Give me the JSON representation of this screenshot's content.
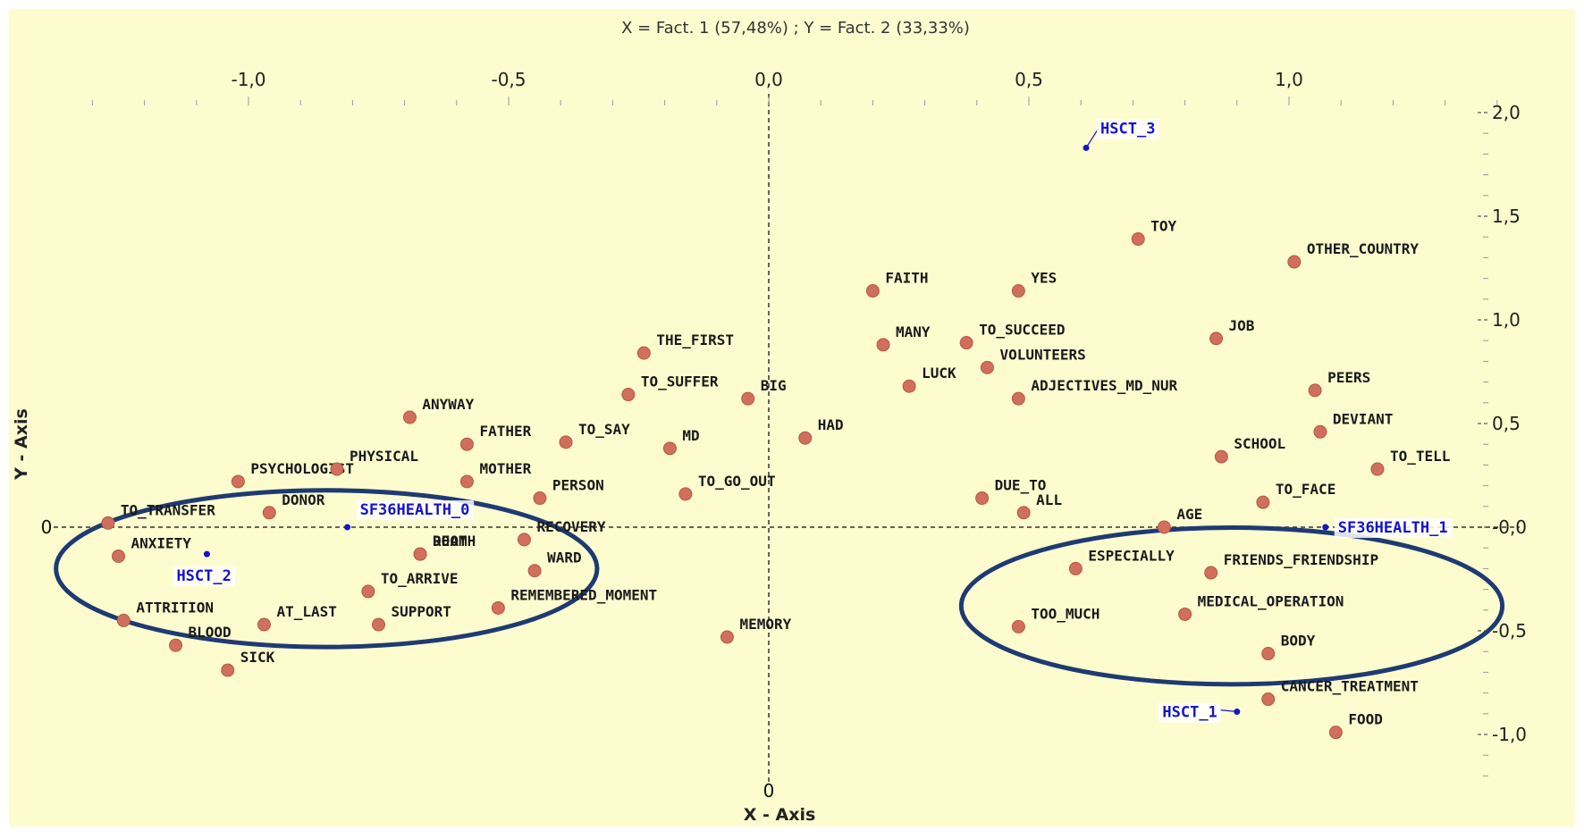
{
  "chart_data": {
    "type": "scatter",
    "title": "X = Fact. 1 (57,48%) ; Y = Fact. 2 (33,33%)",
    "xlabel": "X - Axis",
    "ylabel": "Y - Axis",
    "xlim": [
      -1.35,
      1.42
    ],
    "ylim": [
      -1.28,
      2.1
    ],
    "x_ticks": [
      -1.0,
      -0.5,
      0.0,
      0.5,
      1.0
    ],
    "x_tick_labels": [
      "-1,0",
      "-0,5",
      "0,0",
      "0,5",
      "1,0"
    ],
    "y_ticks": [
      2.0,
      1.5,
      1.0,
      0.5,
      0.0,
      -0.5,
      -1.0
    ],
    "y_tick_labels": [
      "2,0",
      "1,5",
      "1,0",
      "0,5",
      "-0,0",
      "-0,5",
      "-1,0"
    ],
    "origin_labels": {
      "x": "0",
      "y": "0"
    },
    "grid": false,
    "point_color": "#d06f5b",
    "supplementary_color": "#1414c8",
    "ellipse_color": "#1f3a72",
    "series": [
      {
        "kind": "words",
        "points": [
          {
            "label": "THE_FIRST",
            "x": -0.24,
            "y": 0.84
          },
          {
            "label": "TO_SUFFER",
            "x": -0.27,
            "y": 0.64
          },
          {
            "label": "BIG",
            "x": -0.04,
            "y": 0.62
          },
          {
            "label": "ANYWAY",
            "x": -0.69,
            "y": 0.53
          },
          {
            "label": "FATHER",
            "x": -0.58,
            "y": 0.4
          },
          {
            "label": "TO_SAY",
            "x": -0.39,
            "y": 0.41
          },
          {
            "label": "MD",
            "x": -0.19,
            "y": 0.38
          },
          {
            "label": "HAD",
            "x": 0.07,
            "y": 0.43
          },
          {
            "label": "PSYCHOLOGIST",
            "x": -1.02,
            "y": 0.22
          },
          {
            "label": "PHYSICAL",
            "x": -0.83,
            "y": 0.28
          },
          {
            "label": "MOTHER",
            "x": -0.58,
            "y": 0.22
          },
          {
            "label": "TO_GO_OUT",
            "x": -0.16,
            "y": 0.16
          },
          {
            "label": "PERSON",
            "x": -0.44,
            "y": 0.14
          },
          {
            "label": "TO_TRANSFER",
            "x": -1.27,
            "y": 0.02
          },
          {
            "label": "DONOR",
            "x": -0.96,
            "y": 0.07
          },
          {
            "label": "RECOVERY",
            "x": -0.47,
            "y": -0.06
          },
          {
            "label": "ANXIETY",
            "x": -1.25,
            "y": -0.14
          },
          {
            "label": "DEATH",
            "x": -0.67,
            "y": -0.13
          },
          {
            "label": "ROOM",
            "x": -0.67,
            "y": -0.13
          },
          {
            "label": "WARD",
            "x": -0.45,
            "y": -0.21
          },
          {
            "label": "TO_ARRIVE",
            "x": -0.77,
            "y": -0.31
          },
          {
            "label": "ATTRITION",
            "x": -1.24,
            "y": -0.45
          },
          {
            "label": "AT_LAST",
            "x": -0.97,
            "y": -0.47
          },
          {
            "label": "SUPPORT",
            "x": -0.75,
            "y": -0.47
          },
          {
            "label": "REMEMBERED_MOMENT",
            "x": -0.52,
            "y": -0.39
          },
          {
            "label": "BLOOD",
            "x": -1.14,
            "y": -0.57
          },
          {
            "label": "SICK",
            "x": -1.04,
            "y": -0.69
          },
          {
            "label": "MEMORY",
            "x": -0.08,
            "y": -0.53
          },
          {
            "label": "TOY",
            "x": 0.71,
            "y": 1.39
          },
          {
            "label": "OTHER_COUNTRY",
            "x": 1.01,
            "y": 1.28
          },
          {
            "label": "FAITH",
            "x": 0.2,
            "y": 1.14
          },
          {
            "label": "YES",
            "x": 0.48,
            "y": 1.14
          },
          {
            "label": "MANY",
            "x": 0.22,
            "y": 0.88
          },
          {
            "label": "TO_SUCCEED",
            "x": 0.38,
            "y": 0.89
          },
          {
            "label": "VOLUNTEERS",
            "x": 0.42,
            "y": 0.77
          },
          {
            "label": "JOB",
            "x": 0.86,
            "y": 0.91
          },
          {
            "label": "LUCK",
            "x": 0.27,
            "y": 0.68
          },
          {
            "label": "ADJECTIVES_MD_NUR",
            "x": 0.48,
            "y": 0.62
          },
          {
            "label": "PEERS",
            "x": 1.05,
            "y": 0.66
          },
          {
            "label": "DEVIANT",
            "x": 1.06,
            "y": 0.46
          },
          {
            "label": "SCHOOL",
            "x": 0.87,
            "y": 0.34
          },
          {
            "label": "TO_TELL",
            "x": 1.17,
            "y": 0.28
          },
          {
            "label": "DUE_TO",
            "x": 0.41,
            "y": 0.14
          },
          {
            "label": "ALL",
            "x": 0.49,
            "y": 0.07
          },
          {
            "label": "TO_FACE",
            "x": 0.95,
            "y": 0.12
          },
          {
            "label": "AGE",
            "x": 0.76,
            "y": 0.0
          },
          {
            "label": "ESPECIALLY",
            "x": 0.59,
            "y": -0.2
          },
          {
            "label": "FRIENDS_FRIENDSHIP",
            "x": 0.85,
            "y": -0.22
          },
          {
            "label": "TOO_MUCH",
            "x": 0.48,
            "y": -0.48
          },
          {
            "label": "MEDICAL_OPERATION",
            "x": 0.8,
            "y": -0.42
          },
          {
            "label": "BODY",
            "x": 0.96,
            "y": -0.61
          },
          {
            "label": "CANCER_TREATMENT",
            "x": 0.96,
            "y": -0.83
          },
          {
            "label": "FOOD",
            "x": 1.09,
            "y": -0.99
          }
        ]
      },
      {
        "kind": "supplementary",
        "points": [
          {
            "label": "HSCT_3",
            "x": 0.61,
            "y": 1.83
          },
          {
            "label": "SF36HEALTH_0",
            "x": -0.81,
            "y": 0.0
          },
          {
            "label": "HSCT_2",
            "x": -1.08,
            "y": -0.13
          },
          {
            "label": "SF36HEALTH_1",
            "x": 1.07,
            "y": 0.0
          },
          {
            "label": "HSCT_1",
            "x": 0.9,
            "y": -0.89
          }
        ]
      }
    ],
    "annotations": [
      {
        "type": "ellipse",
        "cx": -0.85,
        "cy": -0.2,
        "rx": 0.52,
        "ry": 0.63
      },
      {
        "type": "ellipse",
        "cx": 0.89,
        "cy": -0.38,
        "rx": 0.52,
        "ry": 0.63
      }
    ]
  }
}
